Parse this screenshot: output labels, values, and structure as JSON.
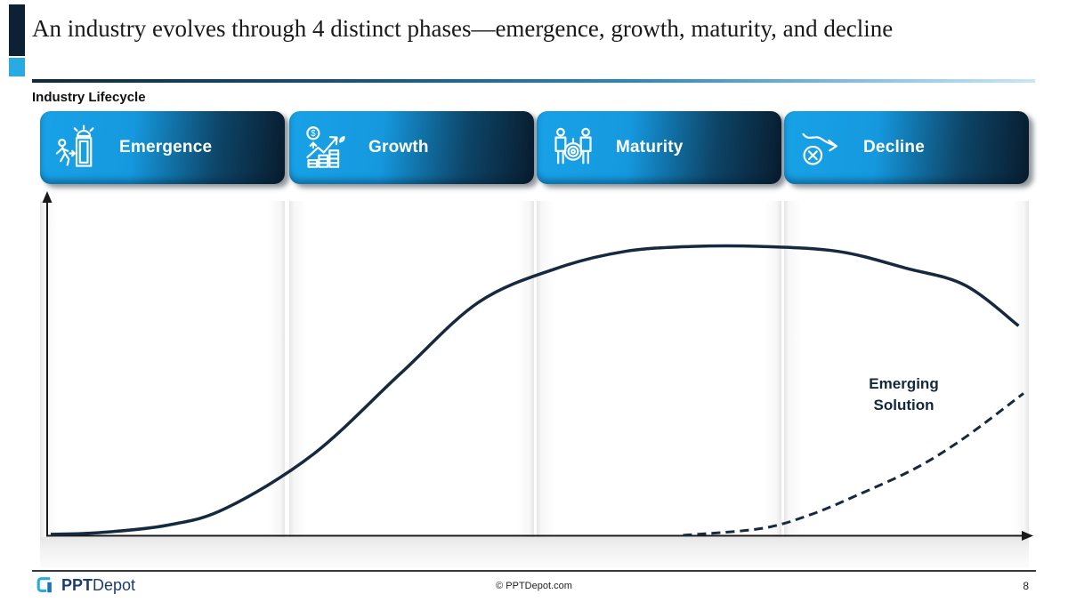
{
  "slide": {
    "title": "An industry evolves through 4 distinct phases—emergence, growth, maturity, and decline",
    "subtitle": "Industry Lifecycle",
    "page_number": "8"
  },
  "phases": [
    {
      "label": "Emergence",
      "icon": "person-exiting-door-alarm-icon"
    },
    {
      "label": "Growth",
      "icon": "coin-stacks-rising-arrow-icon"
    },
    {
      "label": "Maturity",
      "icon": "two-people-target-icon"
    },
    {
      "label": "Decline",
      "icon": "down-arrow-cross-circle-icon"
    }
  ],
  "chart_data": {
    "type": "line",
    "title": "Industry Lifecycle",
    "xlabel": "",
    "ylabel": "",
    "categories": [
      "Emergence",
      "Growth",
      "Maturity",
      "Decline"
    ],
    "axis_style": "unlabeled conceptual axes with arrowheads",
    "grid": false,
    "legend_position": "none",
    "x_range_normalized": [
      0,
      100
    ],
    "y_range_normalized": [
      0,
      100
    ],
    "series": [
      {
        "name": "Industry Lifecycle curve",
        "style": "solid",
        "color": "#15293f",
        "points": [
          [
            0,
            0.3
          ],
          [
            5,
            0.8
          ],
          [
            12,
            3
          ],
          [
            18,
            8
          ],
          [
            27,
            24
          ],
          [
            36,
            48
          ],
          [
            44,
            69
          ],
          [
            52,
            79
          ],
          [
            59,
            84
          ],
          [
            66,
            85.5
          ],
          [
            73,
            85.5
          ],
          [
            81,
            84
          ],
          [
            88,
            79
          ],
          [
            94,
            74
          ],
          [
            99.5,
            62
          ]
        ]
      },
      {
        "name": "Emerging Solution",
        "style": "dashed",
        "color": "#15293f",
        "points": [
          [
            65,
            0
          ],
          [
            73,
            2
          ],
          [
            78,
            6
          ],
          [
            83,
            12
          ],
          [
            89,
            20
          ],
          [
            94,
            29
          ],
          [
            100,
            42
          ]
        ]
      }
    ]
  },
  "annotation": {
    "line1": "Emerging",
    "line2": "Solution"
  },
  "footer": {
    "logo_bold": "PPT",
    "logo_rest": "Depot",
    "copyright": "© PPTDepot.com",
    "page": "8"
  },
  "colors": {
    "bright_blue": "#18a2e7",
    "dark_navy": "#081c2e",
    "accent_square_blue": "#29abe2",
    "curve_navy": "#15293f",
    "logo_light_blue": "#29abe2",
    "logo_dark_blue": "#1b75bb"
  }
}
